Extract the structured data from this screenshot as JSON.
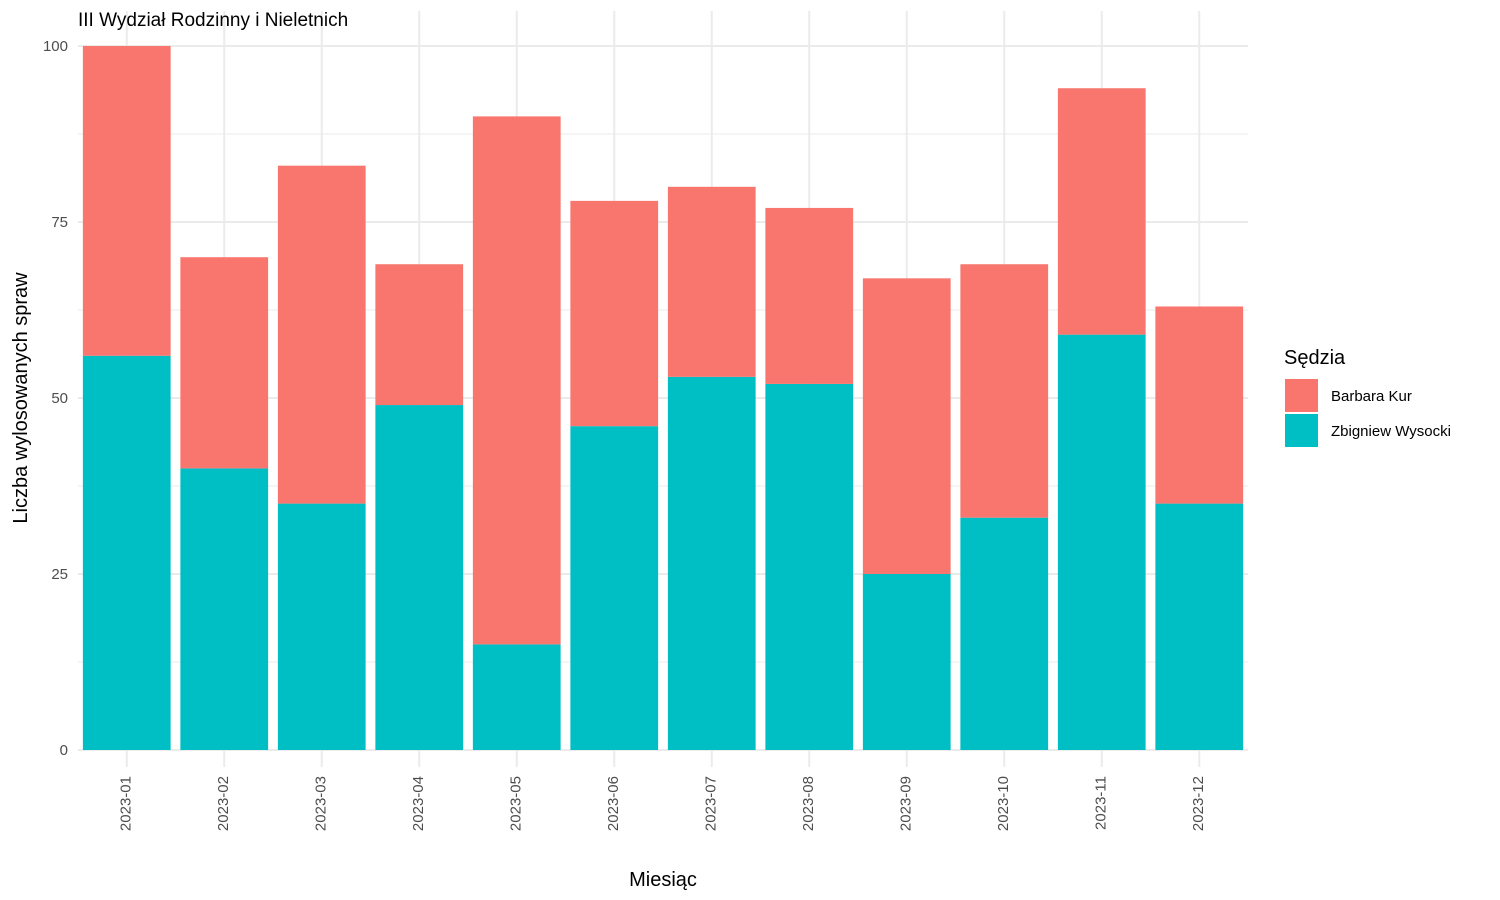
{
  "colors": {
    "Barbara Kur": "#F8766D",
    "Zbigniew Wysocki": "#00BFC4"
  },
  "chart_data": {
    "type": "bar",
    "stacked": true,
    "title": "III Wydział Rodzinny i Nieletnich",
    "xlabel": "Miesiąc",
    "ylabel": "Liczba wylosowanych spraw",
    "legend_title": "Sędzia",
    "legend_position": "right",
    "grid": true,
    "ylim": [
      0,
      100
    ],
    "yticks": [
      0,
      25,
      50,
      75,
      100
    ],
    "categories": [
      "2023-01",
      "2023-02",
      "2023-03",
      "2023-04",
      "2023-05",
      "2023-06",
      "2023-07",
      "2023-08",
      "2023-09",
      "2023-10",
      "2023-11",
      "2023-12"
    ],
    "series": [
      {
        "name": "Zbigniew Wysocki",
        "values": [
          56,
          40,
          35,
          49,
          15,
          46,
          53,
          52,
          25,
          33,
          59,
          35
        ]
      },
      {
        "name": "Barbara Kur",
        "values": [
          44,
          30,
          48,
          20,
          75,
          32,
          27,
          25,
          42,
          36,
          35,
          28
        ]
      }
    ],
    "legend_order": [
      "Barbara Kur",
      "Zbigniew Wysocki"
    ]
  }
}
